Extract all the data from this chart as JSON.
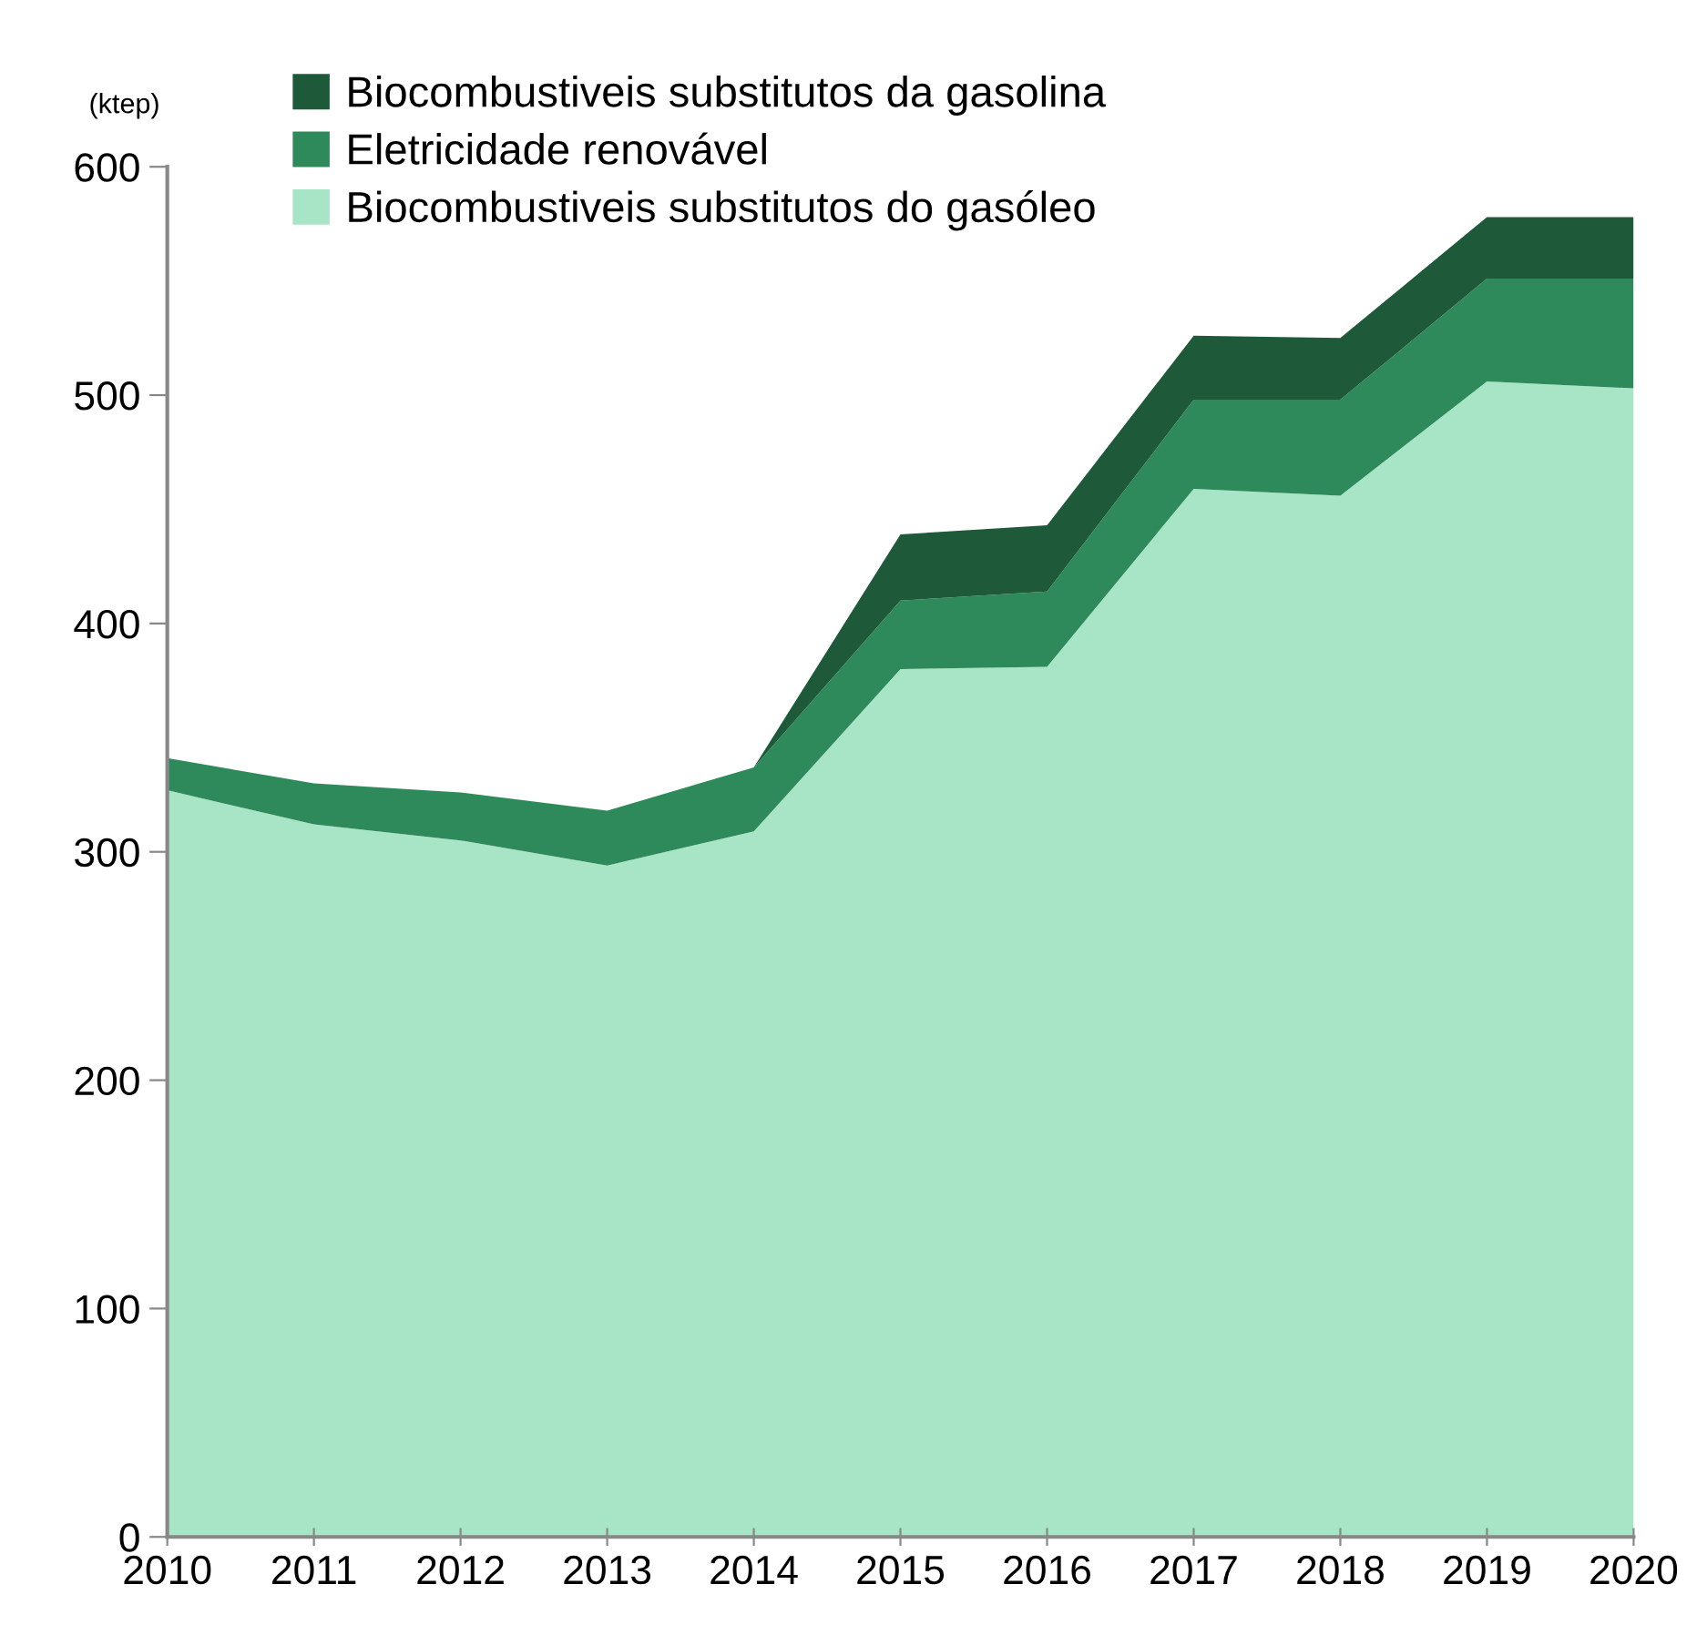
{
  "chart_data": {
    "type": "area",
    "stacked": true,
    "ylabel": "(ktep)",
    "x": [
      2010,
      2011,
      2012,
      2013,
      2014,
      2015,
      2016,
      2017,
      2018,
      2019,
      2020
    ],
    "series": [
      {
        "name": "Biocombustiveis substitutos do gasóleo",
        "color": "#a8e4c6",
        "values": [
          327,
          312,
          305,
          294,
          309,
          380,
          381,
          459,
          456,
          506,
          503
        ]
      },
      {
        "name": "Eletricidade renovável",
        "color": "#2e8a5a",
        "values": [
          14,
          18,
          21,
          24,
          28,
          30,
          33,
          39,
          42,
          45,
          48
        ]
      },
      {
        "name": "Biocombustiveis substitutos da gasolina",
        "color": "#1e5a3a",
        "values": [
          0,
          0,
          0,
          0,
          0,
          29,
          29,
          28,
          27,
          27,
          27
        ]
      }
    ],
    "xlim": [
      2010,
      2020
    ],
    "xticks": [
      2010,
      2011,
      2012,
      2013,
      2014,
      2015,
      2016,
      2017,
      2018,
      2019,
      2020
    ],
    "ylim": [
      0,
      600
    ],
    "yticks": [
      0,
      100,
      200,
      300,
      400,
      500,
      600
    ],
    "grid": false,
    "legend": "top"
  }
}
